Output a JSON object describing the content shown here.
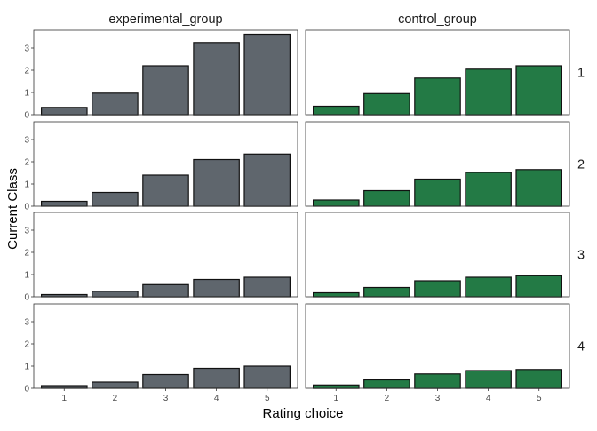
{
  "chart_data": {
    "type": "bar",
    "facet_columns": [
      "experimental_group",
      "control_group"
    ],
    "facet_rows": [
      "1",
      "2",
      "3",
      "4"
    ],
    "categories": [
      "1",
      "2",
      "3",
      "4",
      "5"
    ],
    "xlabel": "Rating choice",
    "ylabel": "Current Class",
    "ylim": [
      0,
      3.8
    ],
    "yticks": [
      "0",
      "1",
      "2",
      "3"
    ],
    "grid": false,
    "colors": {
      "experimental_group": "#5f666d",
      "control_group": "#237a45"
    },
    "panels": [
      {
        "row": "1",
        "col": "experimental_group",
        "values": [
          0.33,
          0.97,
          2.2,
          3.25,
          3.62
        ]
      },
      {
        "row": "1",
        "col": "control_group",
        "values": [
          0.38,
          0.95,
          1.65,
          2.05,
          2.2
        ]
      },
      {
        "row": "2",
        "col": "experimental_group",
        "values": [
          0.22,
          0.62,
          1.4,
          2.1,
          2.35
        ]
      },
      {
        "row": "2",
        "col": "control_group",
        "values": [
          0.28,
          0.7,
          1.22,
          1.52,
          1.65
        ]
      },
      {
        "row": "3",
        "col": "experimental_group",
        "values": [
          0.1,
          0.25,
          0.55,
          0.78,
          0.88
        ]
      },
      {
        "row": "3",
        "col": "control_group",
        "values": [
          0.18,
          0.42,
          0.72,
          0.88,
          0.95
        ]
      },
      {
        "row": "4",
        "col": "experimental_group",
        "values": [
          0.12,
          0.28,
          0.62,
          0.9,
          1.0
        ]
      },
      {
        "row": "4",
        "col": "control_group",
        "values": [
          0.15,
          0.38,
          0.65,
          0.8,
          0.85
        ]
      }
    ]
  }
}
